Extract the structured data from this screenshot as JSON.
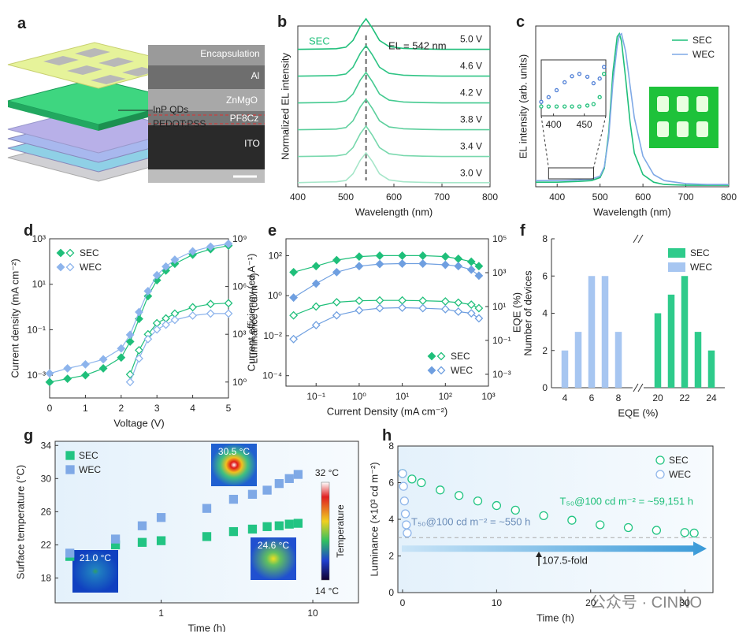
{
  "watermark": "公众号 · CINNO",
  "chart_data": [
    {
      "label": "a",
      "type": "diagram",
      "layers": [
        "Encapsulation",
        "Al",
        "ZnMgO",
        "InP QDs",
        "PF8Cz",
        "PEDOT:PSS",
        "ITO"
      ]
    },
    {
      "label": "b",
      "type": "line",
      "offset": true,
      "xlabel": "Wavelength (nm)",
      "ylabel": "Normalized EL intensity",
      "xlim": [
        400,
        800
      ],
      "xticks": [
        400,
        500,
        600,
        700,
        800
      ],
      "ylim": [
        0,
        1
      ],
      "peak": 542,
      "annotations": [
        "SEC",
        "EL = 542 nm"
      ],
      "x": [
        400,
        450,
        480,
        500,
        515,
        530,
        542,
        555,
        570,
        590,
        620,
        660,
        700,
        750,
        800
      ],
      "series": [
        {
          "name": "5.0 V",
          "color": "#1fbf7a",
          "values": [
            0.01,
            0.02,
            0.03,
            0.08,
            0.3,
            0.75,
            1,
            0.7,
            0.3,
            0.1,
            0.04,
            0.02,
            0.01,
            0.01,
            0.01
          ]
        },
        {
          "name": "4.6 V",
          "color": "#2fc485",
          "values": [
            0.01,
            0.02,
            0.03,
            0.08,
            0.3,
            0.75,
            1,
            0.7,
            0.3,
            0.1,
            0.04,
            0.02,
            0.01,
            0.01,
            0.01
          ]
        },
        {
          "name": "4.2 V",
          "color": "#44ca90",
          "values": [
            0.01,
            0.02,
            0.03,
            0.08,
            0.3,
            0.75,
            1,
            0.7,
            0.3,
            0.1,
            0.04,
            0.02,
            0.01,
            0.01,
            0.01
          ]
        },
        {
          "name": "3.8 V",
          "color": "#5ccf9c",
          "values": [
            0.01,
            0.02,
            0.03,
            0.08,
            0.3,
            0.75,
            1,
            0.7,
            0.3,
            0.1,
            0.04,
            0.02,
            0.01,
            0.01,
            0.01
          ]
        },
        {
          "name": "3.4 V",
          "color": "#78d8ad",
          "values": [
            0.01,
            0.02,
            0.03,
            0.08,
            0.3,
            0.75,
            1,
            0.7,
            0.3,
            0.1,
            0.04,
            0.02,
            0.01,
            0.01,
            0.01
          ]
        },
        {
          "name": "3.0 V",
          "color": "#a6e6c9",
          "values": [
            0.03,
            0.05,
            0.06,
            0.1,
            0.32,
            0.76,
            1,
            0.72,
            0.32,
            0.12,
            0.06,
            0.04,
            0.03,
            0.03,
            0.03
          ]
        }
      ]
    },
    {
      "label": "c",
      "type": "line",
      "xlabel": "Wavelength (nm)",
      "ylabel": "EL intensity (arb. units)",
      "xlim": [
        350,
        800
      ],
      "xticks": [
        400,
        500,
        600,
        700,
        800
      ],
      "ylim": [
        0,
        1.05
      ],
      "legend": "upper right",
      "x": [
        350,
        400,
        450,
        480,
        500,
        510,
        520,
        530,
        540,
        545,
        550,
        560,
        570,
        580,
        600,
        625,
        650,
        700,
        750,
        800
      ],
      "series": [
        {
          "name": "SEC",
          "color": "#1fbf7a",
          "values": [
            0.03,
            0.03,
            0.035,
            0.04,
            0.06,
            0.12,
            0.35,
            0.75,
            0.98,
            1.0,
            0.95,
            0.7,
            0.42,
            0.22,
            0.08,
            0.03,
            0.015,
            0.01,
            0.01,
            0.01
          ]
        },
        {
          "name": "WEC",
          "color": "#7fa9e6",
          "values": [
            0.04,
            0.04,
            0.045,
            0.05,
            0.07,
            0.13,
            0.32,
            0.68,
            0.92,
            0.99,
            1.0,
            0.88,
            0.66,
            0.45,
            0.2,
            0.08,
            0.04,
            0.02,
            0.015,
            0.015
          ]
        }
      ],
      "inset": {
        "xlim": [
          380,
          485
        ],
        "xticks": [
          400,
          450
        ],
        "ylim": [
          0,
          1
        ],
        "x": [
          380,
          392,
          405,
          418,
          430,
          442,
          455,
          465,
          475,
          482
        ],
        "series": [
          {
            "name": "SEC",
            "color": "#1fbf7a",
            "values": [
              0.1,
              0.1,
              0.1,
              0.1,
              0.1,
              0.1,
              0.12,
              0.15,
              0.3,
              0.8
            ]
          },
          {
            "name": "WEC",
            "color": "#4f7fd6",
            "values": [
              0.2,
              0.3,
              0.45,
              0.62,
              0.75,
              0.8,
              0.74,
              0.6,
              0.7,
              0.95
            ]
          }
        ]
      }
    },
    {
      "label": "d",
      "type": "line",
      "marker": "diamond",
      "xlabel": "Voltage (V)",
      "ylabel": "Current density (mA cm⁻²)",
      "y2label": "Luminance (cd m⁻²)",
      "xlim": [
        0,
        5
      ],
      "xticks": [
        0,
        1,
        2,
        3,
        4,
        5
      ],
      "ylog": true,
      "ylim": [
        0.0001,
        1000
      ],
      "y2log": true,
      "y2lim": [
        0.1,
        1000000000
      ],
      "legend": "upper left",
      "yticks": [
        {
          "value": 0.001,
          "label": "10⁻³"
        },
        {
          "value": 0.1,
          "label": "10⁻¹"
        },
        {
          "value": 10,
          "label": "10¹"
        },
        {
          "value": 1000,
          "label": "10³"
        }
      ],
      "y2ticks": [
        {
          "value": 1,
          "label": "10⁰"
        },
        {
          "value": 1000,
          "label": "10³"
        },
        {
          "value": 1000000,
          "label": "10⁶"
        },
        {
          "value": 1000000000,
          "label": "10⁹"
        }
      ],
      "x": [
        0,
        0.5,
        1,
        1.5,
        2,
        2.25,
        2.5,
        2.75,
        3,
        3.25,
        3.5,
        4,
        4.5,
        5
      ],
      "series": [
        {
          "name": "SEC",
          "color": "#1fbf7a",
          "values": [
            0.0005,
            0.0007,
            0.001,
            0.002,
            0.006,
            0.03,
            0.3,
            3,
            15,
            40,
            80,
            200,
            350,
            500
          ],
          "values_y2": [
            null,
            null,
            null,
            null,
            null,
            3,
            100,
            1000,
            5000,
            10000,
            20000,
            50000,
            80000,
            90000
          ]
        },
        {
          "name": "WEC",
          "color": "#8db4ec",
          "values": [
            0.0012,
            0.002,
            0.003,
            0.005,
            0.015,
            0.06,
            0.6,
            5,
            25,
            60,
            120,
            280,
            450,
            600
          ],
          "values_y2": [
            null,
            null,
            null,
            null,
            null,
            1,
            30,
            500,
            2000,
            4000,
            8000,
            15000,
            20000,
            20000
          ]
        }
      ]
    },
    {
      "label": "e",
      "type": "line",
      "marker": "diamond",
      "xlabel": "Current Density (mA cm⁻²)",
      "ylabel": "Current efficiency (cd A⁻¹)",
      "y2label": "EQE (%)",
      "xlog": true,
      "xlim": [
        0.02,
        1000
      ],
      "ylog": true,
      "ylim": [
        3e-05,
        700
      ],
      "y2log": true,
      "y2lim": [
        0.0002,
        100000
      ],
      "legend": "lower right",
      "xticks": [
        {
          "value": 0.1,
          "label": "10⁻¹"
        },
        {
          "value": 1,
          "label": "10⁰"
        },
        {
          "value": 10,
          "label": "10¹"
        },
        {
          "value": 100,
          "label": "10²"
        },
        {
          "value": 1000,
          "label": "10³"
        }
      ],
      "yticks": [
        {
          "value": 0.0001,
          "label": "10⁻⁴"
        },
        {
          "value": 0.01,
          "label": "10⁻²"
        },
        {
          "value": 1,
          "label": "10⁰"
        },
        {
          "value": 100,
          "label": "10²"
        }
      ],
      "y2ticks": [
        {
          "value": 0.001,
          "label": "10⁻³"
        },
        {
          "value": 0.1,
          "label": "10⁻¹"
        },
        {
          "value": 10,
          "label": "10¹"
        },
        {
          "value": 1000,
          "label": "10³"
        },
        {
          "value": 100000,
          "label": "10⁵"
        }
      ],
      "x": [
        0.03,
        0.1,
        0.3,
        1,
        3,
        10,
        30,
        100,
        200,
        400,
        600
      ],
      "series": [
        {
          "name": "SEC",
          "color": "#1fbf7a",
          "values": [
            15,
            30,
            60,
            90,
            100,
            100,
            100,
            90,
            70,
            50,
            30
          ],
          "values_y2": [
            3,
            10,
            18,
            22,
            23,
            23,
            22,
            20,
            17,
            13,
            8
          ]
        },
        {
          "name": "WEC",
          "color": "#6f9fe0",
          "values": [
            0.8,
            4,
            15,
            30,
            38,
            40,
            40,
            35,
            30,
            20,
            10
          ],
          "values_y2": [
            0.12,
            0.8,
            3,
            6,
            8,
            8.5,
            8,
            7,
            5,
            4,
            2
          ]
        }
      ]
    },
    {
      "label": "f",
      "type": "bar",
      "box": false,
      "xlabel": "EQE (%)",
      "ylabel": "Number of devices",
      "xlim": [
        3,
        25
      ],
      "xbreak": [
        9,
        19
      ],
      "xticks": [
        4,
        6,
        8,
        20,
        22,
        24
      ],
      "ylim": [
        0,
        8
      ],
      "yticks": [
        0,
        2,
        4,
        6,
        8
      ],
      "legend": "upper right",
      "series": [
        {
          "name": "SEC",
          "color": "#2ecb8b",
          "x": [
            20,
            21,
            22,
            23,
            24
          ],
          "values": [
            4,
            5,
            6,
            3,
            2
          ]
        },
        {
          "name": "WEC",
          "color": "#a7c6f1",
          "x": [
            4,
            5,
            6,
            7,
            8
          ],
          "values": [
            2,
            3,
            6,
            6,
            3
          ]
        }
      ]
    },
    {
      "label": "g",
      "type": "scatter",
      "marker": "square",
      "xlabel": "Time (h)",
      "ylabel": "Surface temperature (°C)",
      "xlog": true,
      "xlim": [
        0.2,
        20
      ],
      "xticks": [
        1,
        10
      ],
      "ylim": [
        15,
        34.5
      ],
      "yticks": [
        18,
        22,
        26,
        30,
        34
      ],
      "legend": "upper left",
      "x": [
        0.25,
        0.5,
        0.75,
        1,
        2,
        3,
        4,
        5,
        6,
        7,
        8
      ],
      "series": [
        {
          "name": "SEC",
          "color": "#22c483",
          "values": [
            20.6,
            22.0,
            22.3,
            22.5,
            23.0,
            23.6,
            23.9,
            24.2,
            24.3,
            24.5,
            24.6
          ]
        },
        {
          "name": "WEC",
          "color": "#7fa9e6",
          "values": [
            21.0,
            22.7,
            24.3,
            25.3,
            26.4,
            27.5,
            28.1,
            28.6,
            29.4,
            30.0,
            30.5
          ]
        }
      ],
      "image_labels": [
        "21.0 °C",
        "30.5 °C",
        "24.6 °C"
      ],
      "colorbar": {
        "title": "Temperature",
        "labels": [
          "32 °C",
          "14 °C"
        ]
      }
    },
    {
      "label": "h",
      "type": "scatter",
      "marker": "circle",
      "filled": false,
      "xlabel": "Time (h)",
      "ylabel": "Luminance (×10³ cd m⁻²)",
      "xlim": [
        -0.5,
        33
      ],
      "xticks": [
        0,
        10,
        20,
        30
      ],
      "ylim": [
        0,
        8
      ],
      "yticks": [
        0,
        2,
        4,
        6,
        8
      ],
      "legend": "upper right",
      "hline": 3,
      "annotations": [
        "T₅₀@100 cd m⁻² = ~59,151 h",
        "T₅₀@100 cd m⁻² = ~550 h",
        "107.5-fold"
      ],
      "series": [
        {
          "name": "SEC",
          "color": "#22c483",
          "x": [
            0,
            1,
            2,
            4,
            6,
            8,
            10,
            12,
            15,
            18,
            21,
            24,
            27,
            30,
            31
          ],
          "values": [
            6.5,
            6.2,
            6.0,
            5.6,
            5.3,
            5.0,
            4.75,
            4.5,
            4.2,
            3.95,
            3.7,
            3.55,
            3.4,
            3.28,
            3.25
          ]
        },
        {
          "name": "WEC",
          "color": "#8fb6ea",
          "x": [
            0,
            0.1,
            0.2,
            0.3,
            0.4,
            0.5
          ],
          "values": [
            6.5,
            5.8,
            5.0,
            4.3,
            3.7,
            3.25
          ]
        }
      ]
    }
  ]
}
